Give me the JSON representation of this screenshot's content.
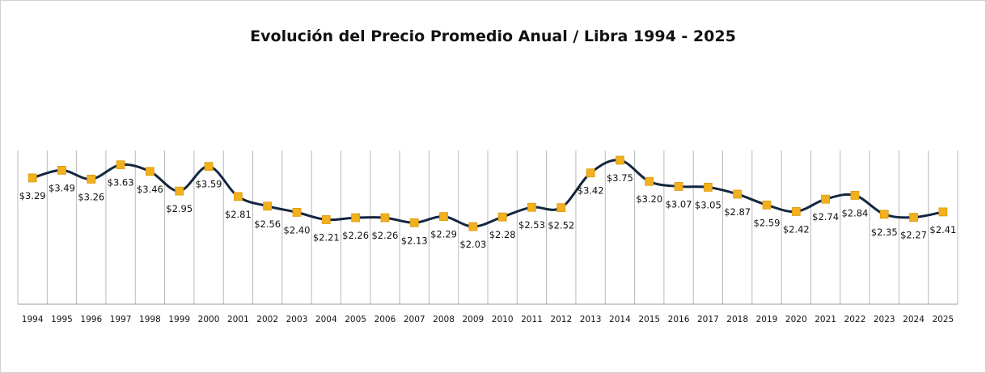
{
  "chart_data": {
    "type": "line",
    "title": "Evolución del Precio Promedio Anual / Libra 1994 - 2025",
    "xlabel": "",
    "ylabel": "",
    "categories": [
      "1994",
      "1995",
      "1996",
      "1997",
      "1998",
      "1999",
      "2000",
      "2001",
      "2002",
      "2003",
      "2004",
      "2005",
      "2006",
      "2007",
      "2008",
      "2009",
      "2010",
      "2011",
      "2012",
      "2013",
      "2014",
      "2015",
      "2016",
      "2017",
      "2018",
      "2019",
      "2020",
      "2021",
      "2022",
      "2023",
      "2024",
      "2025"
    ],
    "series": [
      {
        "values": [
          3.29,
          3.49,
          3.26,
          3.63,
          3.46,
          2.95,
          3.59,
          2.81,
          2.56,
          2.4,
          2.21,
          2.26,
          2.26,
          2.13,
          2.29,
          2.03,
          2.28,
          2.53,
          2.52,
          3.42,
          3.75,
          3.2,
          3.07,
          3.05,
          2.87,
          2.59,
          2.42,
          2.74,
          2.84,
          2.35,
          2.27,
          2.41
        ],
        "labels": [
          "$3.29",
          "$3.49",
          "$3.26",
          "$3.63",
          "$3.46",
          "$2.95",
          "$3.59",
          "$2.81",
          "$2.56",
          "$2.40",
          "$2.21",
          "$2.26",
          "$2.26",
          "$2.13",
          "$2.29",
          "$2.03",
          "$2.28",
          "$2.53",
          "$2.52",
          "$3.42",
          "$3.75",
          "$3.20",
          "$3.07",
          "$3.05",
          "$2.87",
          "$2.59",
          "$2.42",
          "$2.74",
          "$2.84",
          "$2.35",
          "$2.27",
          "$2.41"
        ],
        "line_color": "#14263f",
        "marker_color": "#f2b01e"
      }
    ],
    "grid": "vertical",
    "legend": "none"
  }
}
